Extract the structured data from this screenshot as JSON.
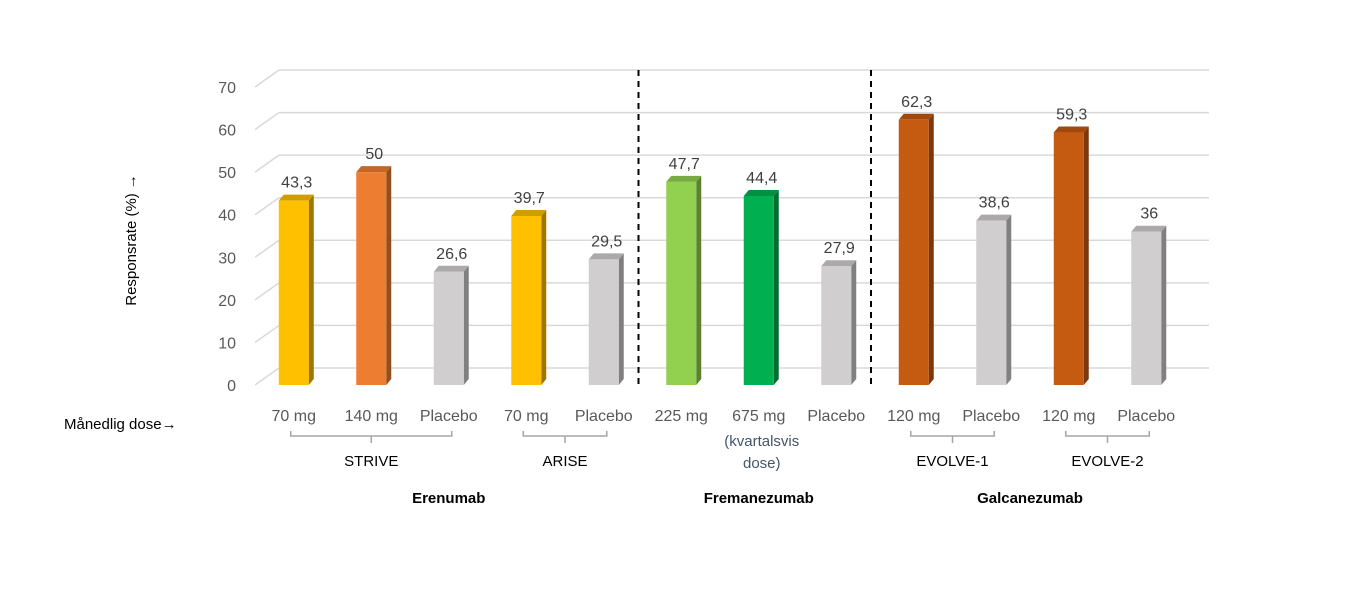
{
  "chart_data": {
    "type": "bar",
    "ylabel": "Responsrate (%)",
    "ylabel_arrow": "→",
    "xlabel": "Månedlig dose",
    "xlabel_arrow": "→",
    "ylim": [
      0,
      70
    ],
    "yticks": [
      0,
      10,
      20,
      30,
      40,
      50,
      60,
      70
    ],
    "grid": true,
    "categories": [
      "70 mg",
      "140 mg",
      "Placebo",
      "70 mg",
      "Placebo",
      "225 mg",
      "675 mg",
      "Placebo",
      "120 mg",
      "Placebo",
      "120 mg",
      "Placebo"
    ],
    "values": [
      43.3,
      50,
      26.6,
      39.7,
      29.5,
      47.7,
      44.4,
      27.9,
      62.3,
      38.6,
      59.3,
      36
    ],
    "value_labels": [
      "43,3",
      "50",
      "26,6",
      "39,7",
      "29,5",
      "47,7",
      "44,4",
      "27,9",
      "62,3",
      "38,6",
      "59,3",
      "36"
    ],
    "colors": [
      "#ffc000",
      "#ed7d31",
      "#d0cece",
      "#ffc000",
      "#d0cece",
      "#92d050",
      "#00b050",
      "#d0cece",
      "#c55a11",
      "#d0cece",
      "#c55a11",
      "#d0cece"
    ],
    "category_note": {
      "index": 6,
      "lines": [
        "(kvartalsvis",
        "dose)"
      ]
    },
    "trials": [
      {
        "name": "STRIVE",
        "from": 0,
        "to": 2
      },
      {
        "name": "ARISE",
        "from": 3,
        "to": 4
      },
      {
        "name": "EVOLVE-1",
        "from": 8,
        "to": 9
      },
      {
        "name": "EVOLVE-2",
        "from": 10,
        "to": 11
      }
    ],
    "drugs": [
      {
        "name": "Erenumab",
        "from": 0,
        "to": 4
      },
      {
        "name": "Fremanezumab",
        "from": 5,
        "to": 7
      },
      {
        "name": "Galcanezumab",
        "from": 8,
        "to": 11
      }
    ],
    "dividers_after": [
      4,
      7
    ]
  }
}
